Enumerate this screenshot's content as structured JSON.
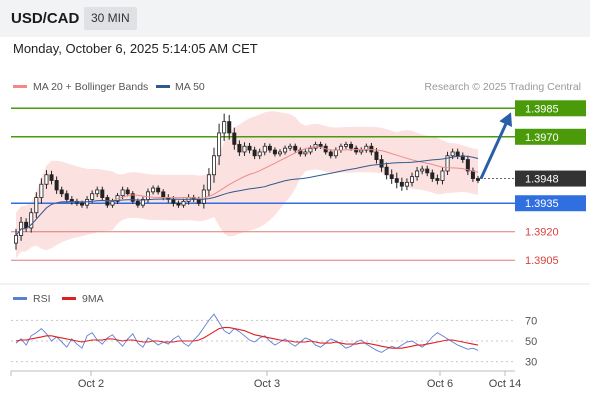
{
  "header": {
    "symbol": "USD/CAD",
    "timeframe": "30 MIN"
  },
  "timestamp": "Monday, October 6, 2025 5:14:05 AM CET",
  "legend": {
    "bollinger": {
      "label": "MA 20 + Bollinger Bands",
      "color": "#f08a8a"
    },
    "ma50": {
      "label": "MA 50",
      "color": "#2f5a8f"
    },
    "credit": "Research © 2025 Trading Central"
  },
  "rsi_legend": {
    "rsi": {
      "label": "RSI",
      "color": "#5b7fd6"
    },
    "ma9": {
      "label": "9MA",
      "color": "#e02020"
    }
  },
  "chart_data": [
    {
      "type": "candlestick",
      "title": "USD/CAD",
      "ylim": [
        1.3893,
        1.3992
      ],
      "levels": [
        {
          "value": 1.3985,
          "label": "1.3985",
          "role": "target",
          "color": "#4a9a0a"
        },
        {
          "value": 1.397,
          "label": "1.3970",
          "role": "resistance",
          "color": "#4a9a0a"
        },
        {
          "value": 1.3948,
          "label": "1.3948",
          "role": "last-price",
          "color": "#333333"
        },
        {
          "value": 1.3935,
          "label": "1.3935",
          "role": "pivot",
          "color": "#2f6fe0"
        },
        {
          "value": 1.392,
          "label": "1.3920",
          "role": "support",
          "color": "#e07a7a"
        },
        {
          "value": 1.3905,
          "label": "1.3905",
          "role": "support",
          "color": "#e07a7a"
        }
      ],
      "closes": [
        1.3918,
        1.3925,
        1.3922,
        1.393,
        1.3938,
        1.3945,
        1.395,
        1.3947,
        1.3942,
        1.394,
        1.3937,
        1.3936,
        1.3935,
        1.3934,
        1.3937,
        1.394,
        1.3942,
        1.3938,
        1.3934,
        1.3936,
        1.3939,
        1.3942,
        1.394,
        1.3936,
        1.3934,
        1.3937,
        1.3941,
        1.3943,
        1.3941,
        1.3938,
        1.3937,
        1.3935,
        1.3934,
        1.3936,
        1.3938,
        1.3937,
        1.3935,
        1.3942,
        1.395,
        1.396,
        1.3972,
        1.3978,
        1.3972,
        1.3966,
        1.3962,
        1.3965,
        1.3963,
        1.396,
        1.3962,
        1.3965,
        1.3963,
        1.3961,
        1.3962,
        1.3964,
        1.3965,
        1.3963,
        1.3961,
        1.3962,
        1.3964,
        1.3966,
        1.3965,
        1.3962,
        1.396,
        1.3963,
        1.3965,
        1.3966,
        1.3964,
        1.3962,
        1.3963,
        1.3965,
        1.3962,
        1.3958,
        1.3954,
        1.395,
        1.3948,
        1.3946,
        1.3944,
        1.3946,
        1.3949,
        1.3952,
        1.3953,
        1.3951,
        1.3948,
        1.3947,
        1.3952,
        1.396,
        1.3962,
        1.396,
        1.3958,
        1.3952,
        1.3948,
        1.3947
      ],
      "ranges": [
        0.001,
        0.0008,
        0.0006,
        0.0007,
        0.0008,
        0.0009,
        0.0007,
        0.0006,
        0.0006,
        0.0005,
        0.0005,
        0.0005,
        0.0004,
        0.0004,
        0.0005,
        0.0005,
        0.0005,
        0.0005,
        0.0004,
        0.0004,
        0.0004,
        0.0005,
        0.0004,
        0.0004,
        0.0004,
        0.0004,
        0.0005,
        0.0004,
        0.0004,
        0.0004,
        0.0005,
        0.0005,
        0.0004,
        0.0004,
        0.0005,
        0.0004,
        0.0004,
        0.0008,
        0.001,
        0.0012,
        0.0014,
        0.0012,
        0.001,
        0.0008,
        0.0006,
        0.0006,
        0.0005,
        0.0005,
        0.0005,
        0.0005,
        0.0004,
        0.0004,
        0.0004,
        0.0004,
        0.0004,
        0.0004,
        0.0004,
        0.0004,
        0.0004,
        0.0004,
        0.0004,
        0.0004,
        0.0004,
        0.0004,
        0.0004,
        0.0004,
        0.0004,
        0.0004,
        0.0004,
        0.0004,
        0.0005,
        0.0006,
        0.0007,
        0.0007,
        0.0008,
        0.0009,
        0.0007,
        0.0006,
        0.0006,
        0.0006,
        0.0005,
        0.0005,
        0.0005,
        0.0006,
        0.0006,
        0.0006,
        0.0005,
        0.0005,
        0.0005,
        0.0006,
        0.0005,
        0.0004
      ],
      "forecast": {
        "from": 1.3948,
        "to": 1.3985
      },
      "x_ticks": [
        "Oct 2",
        "Oct 3",
        "Oct 6",
        "Oct 14"
      ]
    },
    {
      "type": "line",
      "title": "RSI",
      "ylim": [
        20,
        80
      ],
      "y_ticks": [
        70,
        50,
        30
      ],
      "series": [
        {
          "name": "RSI",
          "values": [
            48,
            52,
            46,
            55,
            58,
            62,
            57,
            50,
            54,
            49,
            44,
            52,
            47,
            43,
            55,
            58,
            51,
            47,
            53,
            56,
            50,
            45,
            52,
            57,
            48,
            44,
            53,
            50,
            46,
            49,
            47,
            52,
            55,
            48,
            45,
            51,
            56,
            63,
            70,
            76,
            68,
            60,
            57,
            62,
            59,
            55,
            51,
            49,
            53,
            55,
            50,
            46,
            49,
            52,
            48,
            45,
            49,
            53,
            51,
            46,
            44,
            48,
            52,
            50,
            47,
            43,
            45,
            49,
            51,
            47,
            44,
            41,
            39,
            42,
            45,
            43,
            46,
            49,
            50,
            47,
            44,
            48,
            54,
            58,
            55,
            52,
            49,
            46,
            44,
            42,
            43,
            41
          ]
        },
        {
          "name": "9MA",
          "values": [
            50,
            51,
            51,
            52,
            53,
            54,
            55,
            55,
            54,
            53,
            52,
            51,
            50,
            49,
            50,
            51,
            51,
            51,
            52,
            52,
            51,
            50,
            51,
            51,
            50,
            49,
            49,
            50,
            50,
            49,
            49,
            49,
            50,
            50,
            50,
            50,
            51,
            53,
            56,
            59,
            62,
            63,
            63,
            62,
            61,
            60,
            58,
            56,
            55,
            54,
            53,
            52,
            51,
            50,
            50,
            49,
            49,
            49,
            50,
            49,
            48,
            48,
            48,
            49,
            48,
            47,
            47,
            47,
            48,
            48,
            47,
            46,
            45,
            44,
            43,
            43,
            43,
            44,
            45,
            46,
            46,
            47,
            48,
            49,
            50,
            51,
            51,
            50,
            49,
            48,
            47,
            46
          ]
        }
      ],
      "x_ticks": [
        "Oct 2",
        "Oct 3",
        "Oct 6",
        "Oct 14"
      ]
    }
  ]
}
